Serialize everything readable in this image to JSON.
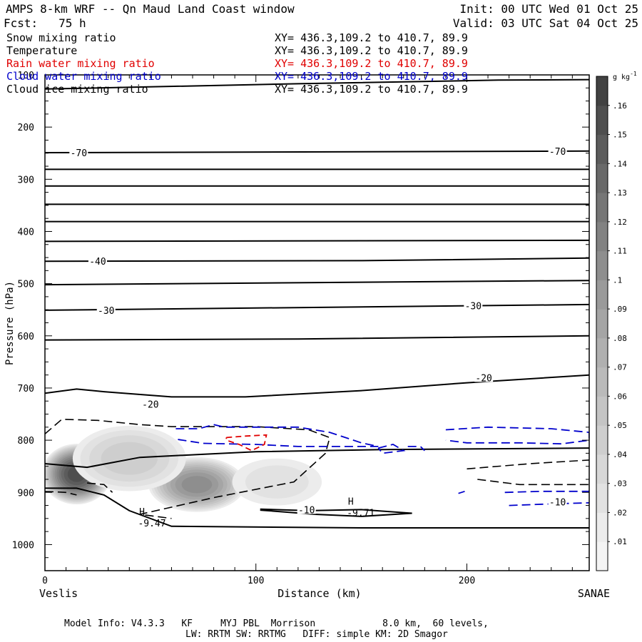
{
  "header": {
    "title": "AMPS 8-km WRF -- Qn Maud Land Coast window",
    "forecast": "Fcst:   75 h",
    "init": "Init: 00 UTC Wed 01 Oct 25",
    "valid": "Valid: 03 UTC Sat 04 Oct 25"
  },
  "legend": [
    {
      "label": "Snow mixing ratio",
      "xy": "XY= 436.3,109.2 to 410.7, 89.9",
      "color": "#000000"
    },
    {
      "label": "Temperature",
      "xy": "XY= 436.3,109.2 to 410.7, 89.9",
      "color": "#000000"
    },
    {
      "label": "Rain water mixing ratio",
      "xy": "XY= 436.3,109.2 to 410.7, 89.9",
      "color": "#e00000"
    },
    {
      "label": "Cloud water mixing ratio",
      "xy": "XY= 436.3,109.2 to 410.7, 89.9",
      "color": "#0000cc"
    },
    {
      "label": "Cloud ice mixing ratio",
      "xy": "XY= 436.3,109.2 to 410.7, 89.9",
      "color": "#000000"
    }
  ],
  "footer": {
    "line1": "Model Info: V4.3.3   KF     MYJ PBL  Morrison            8.0 km,  60 levels,",
    "line2": "LW: RRTM SW: RRTMG   DIFF: simple KM: 2D Smagor"
  },
  "chart_data": {
    "type": "contour",
    "title": "AMPS 8-km WRF -- Qn Maud Land Coast window",
    "xlabel": "Distance (km)",
    "ylabel": "Pressure (hPa)",
    "xlim": [
      0,
      258
    ],
    "ylim": [
      1050,
      100
    ],
    "x_ticks": [
      0,
      100,
      200
    ],
    "y_ticks": [
      100,
      200,
      300,
      400,
      500,
      600,
      700,
      800,
      900,
      1000
    ],
    "x_endpoints": {
      "left": "Veslis",
      "right": "SANAE"
    },
    "colorbar": {
      "unit": "g kg",
      "unit_exp": "-1",
      "levels": [
        0.01,
        0.02,
        0.03,
        0.04,
        0.05,
        0.06,
        0.07,
        0.08,
        0.09,
        0.1,
        0.11,
        0.12,
        0.13,
        0.14,
        0.15,
        0.16
      ],
      "level_labels": [
        ".01",
        ".02",
        ".03",
        ".04",
        ".05",
        ".06",
        ".07",
        ".08",
        ".09",
        ".1",
        ".11",
        ".12",
        ".13",
        ".14",
        ".15",
        ".16"
      ],
      "colors": [
        "#f4f4f4",
        "#ececec",
        "#e2e2e2",
        "#d8d8d8",
        "#cecece",
        "#c4c4c4",
        "#bababa",
        "#b0b0b0",
        "#a5a5a5",
        "#9a9a9a",
        "#8e8e8e",
        "#828282",
        "#767676",
        "#696969",
        "#5c5c5c",
        "#4f4f4f",
        "#424242"
      ]
    },
    "snow_blobs": [
      {
        "x": 15,
        "p": 865,
        "rx": 17,
        "rp": 60,
        "max": 0.16
      },
      {
        "x": 72,
        "p": 885,
        "rx": 24,
        "rp": 55,
        "max": 0.11
      },
      {
        "x": 40,
        "p": 835,
        "rx": 30,
        "rp": 70,
        "max": 0.05
      },
      {
        "x": 110,
        "p": 880,
        "rx": 26,
        "rp": 55,
        "max": 0.03
      }
    ],
    "temperature_contours": [
      {
        "points": [
          [
            0,
            127
          ],
          [
            120,
            117
          ],
          [
            215,
            110
          ],
          [
            258,
            109
          ]
        ]
      },
      {
        "points": [
          [
            0,
            249
          ],
          [
            258,
            246
          ]
        ]
      },
      {
        "points": [
          [
            0,
            281
          ],
          [
            258,
            281
          ]
        ]
      },
      {
        "points": [
          [
            0,
            313
          ],
          [
            258,
            313
          ]
        ]
      },
      {
        "points": [
          [
            0,
            348
          ],
          [
            258,
            348
          ]
        ]
      },
      {
        "points": [
          [
            0,
            381
          ],
          [
            258,
            381
          ]
        ]
      },
      {
        "points": [
          [
            0,
            419
          ],
          [
            258,
            417
          ]
        ]
      },
      {
        "points": [
          [
            0,
            457
          ],
          [
            150,
            456
          ],
          [
            258,
            451
          ]
        ]
      },
      {
        "points": [
          [
            0,
            502
          ],
          [
            258,
            494
          ]
        ]
      },
      {
        "points": [
          [
            0,
            551
          ],
          [
            258,
            540
          ]
        ]
      },
      {
        "points": [
          [
            0,
            608
          ],
          [
            120,
            606
          ],
          [
            258,
            600
          ]
        ]
      },
      {
        "points": [
          [
            0,
            710
          ],
          [
            15,
            702
          ],
          [
            28,
            707
          ],
          [
            60,
            717
          ],
          [
            95,
            717
          ],
          [
            150,
            705
          ],
          [
            200,
            690
          ],
          [
            258,
            675
          ]
        ]
      },
      {
        "points": [
          [
            0,
            845
          ],
          [
            20,
            852
          ],
          [
            45,
            833
          ],
          [
            100,
            822
          ],
          [
            160,
            818
          ],
          [
            258,
            815
          ]
        ]
      },
      {
        "points": [
          [
            0,
            892
          ],
          [
            15,
            892
          ],
          [
            28,
            905
          ],
          [
            40,
            935
          ],
          [
            60,
            965
          ],
          [
            150,
            968
          ],
          [
            258,
            968
          ]
        ]
      },
      {
        "points": [
          [
            102,
            932
          ],
          [
            125,
            935
          ],
          [
            150,
            933
          ],
          [
            174,
            940
          ],
          [
            150,
            946
          ],
          [
            128,
            942
          ],
          [
            102,
            934
          ]
        ]
      }
    ],
    "temperature_labels": [
      {
        "value": "-70",
        "x": 16,
        "p": 249
      },
      {
        "value": "-70",
        "x": 243,
        "p": 246
      },
      {
        "value": "-40",
        "x": 25,
        "p": 457
      },
      {
        "value": "-30",
        "x": 29,
        "p": 551
      },
      {
        "value": "-30",
        "x": 203,
        "p": 542
      },
      {
        "value": "-20",
        "x": 50,
        "p": 731
      },
      {
        "value": "-20",
        "x": 208,
        "p": 680
      },
      {
        "value": "-10",
        "x": 124,
        "p": 933
      },
      {
        "value": "-10",
        "x": 243,
        "p": 918
      }
    ],
    "highs": [
      {
        "symbol": "H",
        "value": "-9.47",
        "x": 46,
        "p": 949
      },
      {
        "symbol": "H",
        "value": "-9.71",
        "x": 145,
        "p": 929
      }
    ],
    "cloud_ice_contours": [
      {
        "points": [
          [
            0,
            788
          ],
          [
            8,
            760
          ],
          [
            25,
            762
          ],
          [
            45,
            770
          ],
          [
            60,
            774
          ],
          [
            100,
            774
          ],
          [
            125,
            780
          ],
          [
            135,
            795
          ],
          [
            133,
            825
          ],
          [
            118,
            880
          ],
          [
            80,
            910
          ],
          [
            45,
            942
          ],
          [
            60,
            950
          ]
        ]
      },
      {
        "points": [
          [
            20,
            882
          ],
          [
            28,
            885
          ],
          [
            32,
            900
          ]
        ]
      },
      {
        "points": [
          [
            0,
            898
          ],
          [
            10,
            900
          ],
          [
            15,
            905
          ]
        ]
      },
      {
        "points": [
          [
            200,
            855
          ],
          [
            230,
            845
          ],
          [
            258,
            838
          ]
        ]
      },
      {
        "points": [
          [
            205,
            875
          ],
          [
            225,
            885
          ],
          [
            258,
            885
          ]
        ]
      }
    ],
    "cloud_water_contours": [
      {
        "points": [
          [
            62,
            778
          ],
          [
            73,
            778
          ],
          [
            80,
            770
          ],
          [
            85,
            775
          ],
          [
            100,
            775
          ],
          [
            120,
            775
          ],
          [
            135,
            785
          ],
          [
            150,
            805
          ],
          [
            158,
            812
          ],
          [
            140,
            812
          ],
          [
            120,
            812
          ],
          [
            100,
            808
          ],
          [
            75,
            806
          ],
          [
            62,
            798
          ]
        ]
      },
      {
        "points": [
          [
            158,
            815
          ],
          [
            165,
            808
          ],
          [
            170,
            820
          ],
          [
            160,
            825
          ],
          [
            158,
            815
          ]
        ]
      },
      {
        "points": [
          [
            172,
            812
          ],
          [
            178,
            812
          ],
          [
            180,
            820
          ]
        ]
      },
      {
        "points": [
          [
            190,
            780
          ],
          [
            210,
            775
          ],
          [
            240,
            778
          ],
          [
            258,
            785
          ],
          [
            258,
            800
          ],
          [
            245,
            807
          ],
          [
            225,
            805
          ],
          [
            200,
            805
          ],
          [
            190,
            800
          ]
        ]
      },
      {
        "points": [
          [
            218,
            900
          ],
          [
            235,
            898
          ],
          [
            258,
            898
          ]
        ]
      },
      {
        "points": [
          [
            220,
            925
          ],
          [
            240,
            922
          ],
          [
            258,
            920
          ]
        ]
      },
      {
        "points": [
          [
            196,
            902
          ],
          [
            199,
            898
          ]
        ]
      }
    ],
    "rain_water_contours": [
      {
        "points": [
          [
            86,
            795
          ],
          [
            95,
            792
          ],
          [
            105,
            790
          ],
          [
            104,
            808
          ],
          [
            98,
            820
          ],
          [
            92,
            808
          ],
          [
            86,
            800
          ],
          [
            86,
            795
          ]
        ]
      }
    ],
    "series_colors": {
      "snow": "#555555",
      "temperature": "#000000",
      "cloud_ice": "#000000",
      "cloud_water": "#0000cc",
      "rain": "#e00000"
    }
  }
}
